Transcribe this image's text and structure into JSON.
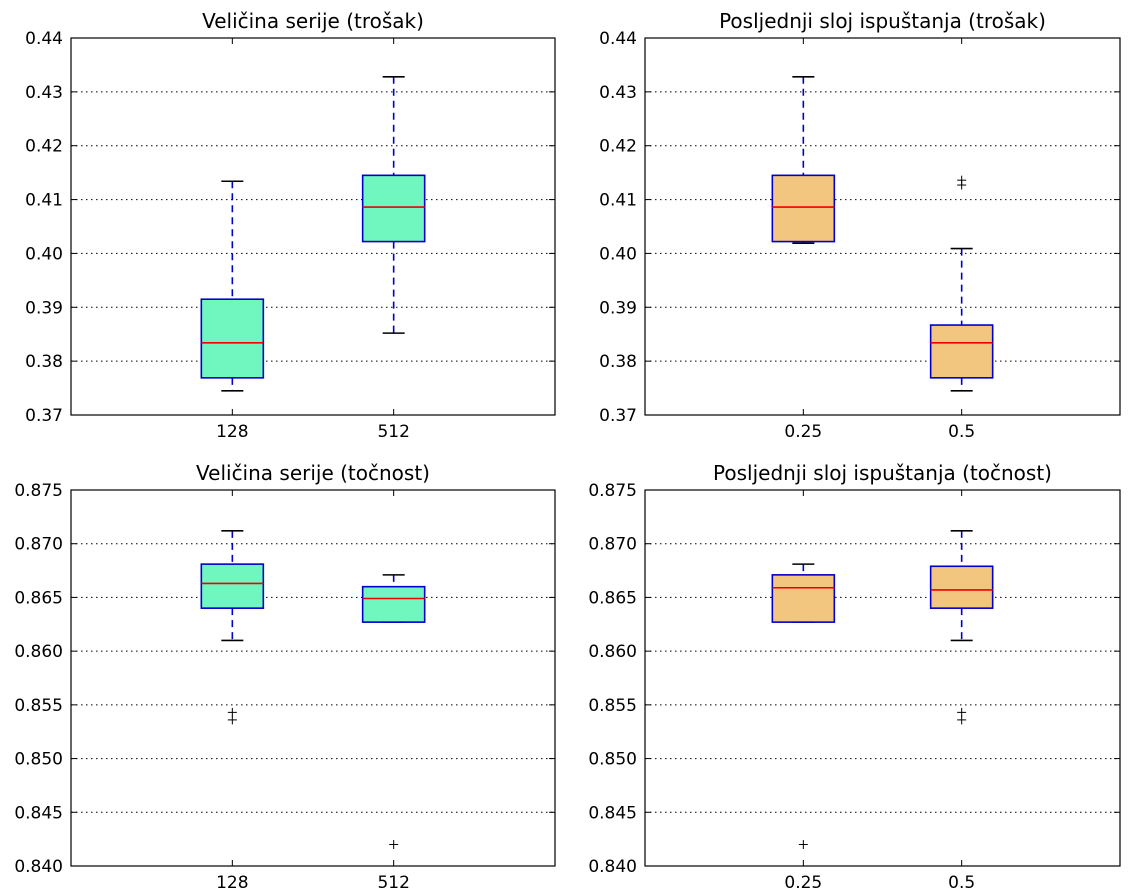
{
  "chart_data": [
    {
      "type": "box",
      "title": "Veličina serije (trošak)",
      "categories": [
        "128",
        "512"
      ],
      "ylim": [
        0.37,
        0.44
      ],
      "yticks": [
        "0.37",
        "0.38",
        "0.39",
        "0.40",
        "0.41",
        "0.42",
        "0.43",
        "0.44"
      ],
      "ytick_values": [
        0.37,
        0.38,
        0.39,
        0.4,
        0.41,
        0.42,
        0.43,
        0.44
      ],
      "grid": true,
      "box_color": "#70f7c0",
      "boxes": [
        {
          "whisker_low": 0.3745,
          "q1": 0.3769,
          "median": 0.3834,
          "q3": 0.3915,
          "whisker_high": 0.4134,
          "fliers": []
        },
        {
          "whisker_low": 0.3852,
          "q1": 0.4022,
          "median": 0.4086,
          "q3": 0.4145,
          "whisker_high": 0.4328,
          "fliers": []
        }
      ]
    },
    {
      "type": "box",
      "title": "Posljednji sloj ispuštanja (trošak)",
      "categories": [
        "0.25",
        "0.5"
      ],
      "ylim": [
        0.37,
        0.44
      ],
      "yticks": [
        "0.37",
        "0.38",
        "0.39",
        "0.40",
        "0.41",
        "0.42",
        "0.43",
        "0.44"
      ],
      "ytick_values": [
        0.37,
        0.38,
        0.39,
        0.4,
        0.41,
        0.42,
        0.43,
        0.44
      ],
      "grid": true,
      "box_color": "#f3c67f",
      "boxes": [
        {
          "whisker_low": 0.4019,
          "q1": 0.4022,
          "median": 0.4086,
          "q3": 0.4145,
          "whisker_high": 0.4328,
          "fliers": []
        },
        {
          "whisker_low": 0.3745,
          "q1": 0.3769,
          "median": 0.3834,
          "q3": 0.3867,
          "whisker_high": 0.4009,
          "fliers": [
            0.4127,
            0.4136
          ]
        }
      ]
    },
    {
      "type": "box",
      "title": "Veličina serije (točnost)",
      "categories": [
        "128",
        "512"
      ],
      "ylim": [
        0.84,
        0.875
      ],
      "yticks": [
        "0.840",
        "0.845",
        "0.850",
        "0.855",
        "0.860",
        "0.865",
        "0.870",
        "0.875"
      ],
      "ytick_values": [
        0.84,
        0.845,
        0.85,
        0.855,
        0.86,
        0.865,
        0.87,
        0.875
      ],
      "grid": true,
      "box_color": "#70f7c0",
      "boxes": [
        {
          "whisker_low": 0.861,
          "q1": 0.864,
          "median": 0.8663,
          "q3": 0.8681,
          "whisker_high": 0.8712,
          "fliers": [
            0.8536,
            0.8543
          ]
        },
        {
          "whisker_low": 0.8627,
          "q1": 0.8627,
          "median": 0.8649,
          "q3": 0.866,
          "whisker_high": 0.8671,
          "fliers": [
            0.842
          ]
        }
      ]
    },
    {
      "type": "box",
      "title": "Posljednji sloj ispuštanja (točnost)",
      "categories": [
        "0.25",
        "0.5"
      ],
      "ylim": [
        0.84,
        0.875
      ],
      "yticks": [
        "0.840",
        "0.845",
        "0.850",
        "0.855",
        "0.860",
        "0.865",
        "0.870",
        "0.875"
      ],
      "ytick_values": [
        0.84,
        0.845,
        0.85,
        0.855,
        0.86,
        0.865,
        0.87,
        0.875
      ],
      "grid": true,
      "box_color": "#f3c67f",
      "boxes": [
        {
          "whisker_low": 0.8627,
          "q1": 0.8627,
          "median": 0.8659,
          "q3": 0.8671,
          "whisker_high": 0.8681,
          "fliers": [
            0.842
          ]
        },
        {
          "whisker_low": 0.861,
          "q1": 0.864,
          "median": 0.8657,
          "q3": 0.8679,
          "whisker_high": 0.8712,
          "fliers": [
            0.8536,
            0.8543
          ]
        }
      ]
    }
  ]
}
